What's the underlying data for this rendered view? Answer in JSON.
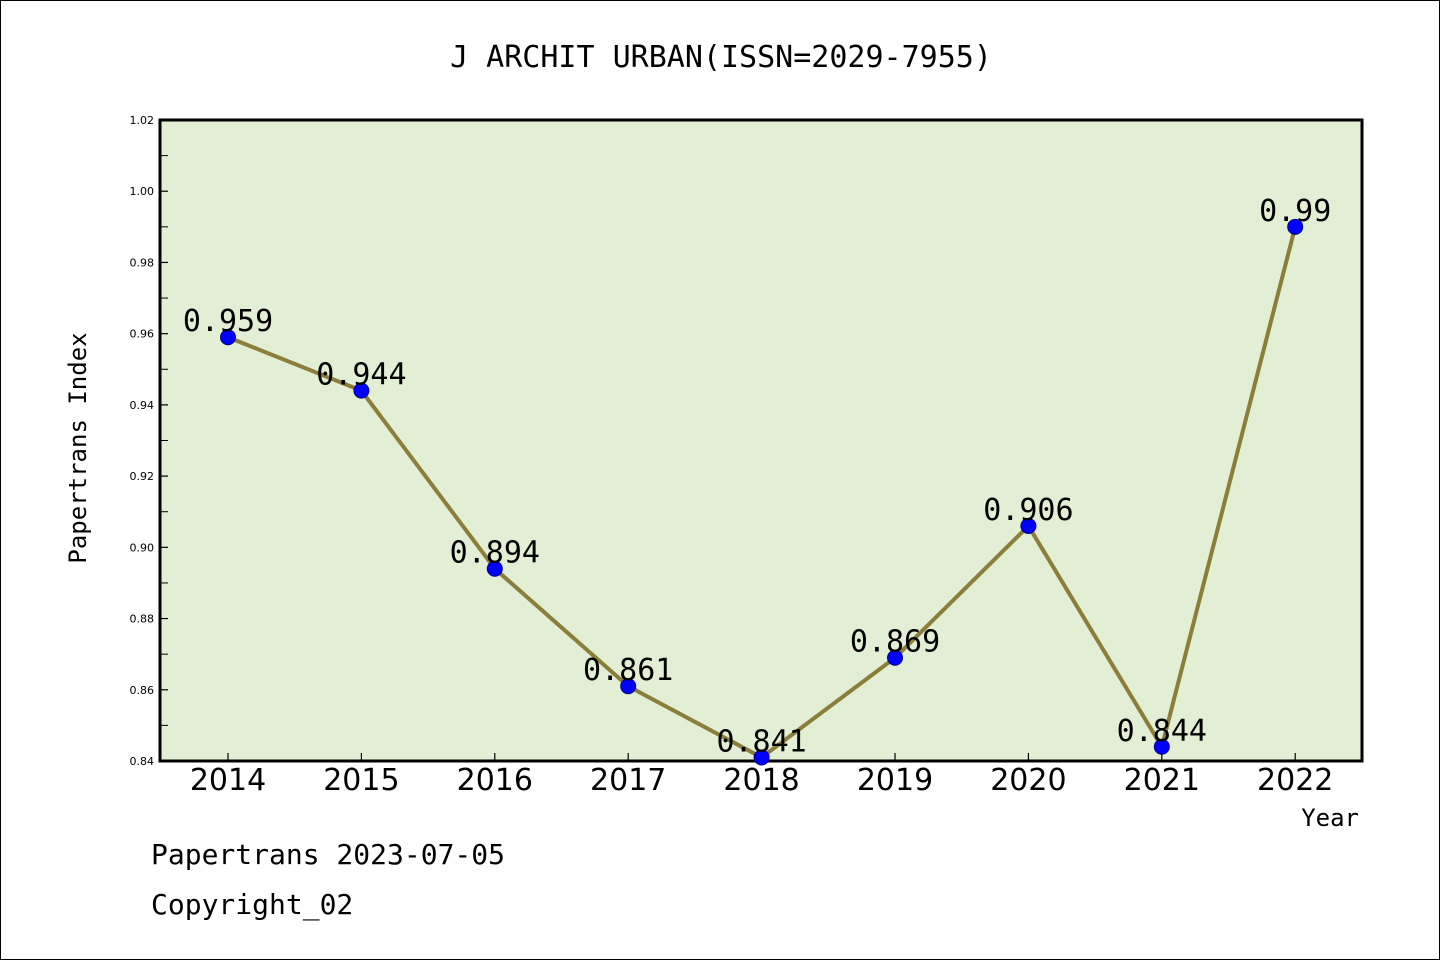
{
  "chart_data": {
    "type": "line",
    "title": "J ARCHIT URBAN(ISSN=2029-7955)",
    "xlabel": "Year",
    "ylabel": "Papertrans Index",
    "x": [
      "2014",
      "2015",
      "2016",
      "2017",
      "2018",
      "2019",
      "2020",
      "2021",
      "2022"
    ],
    "values": [
      0.959,
      0.944,
      0.894,
      0.861,
      0.841,
      0.869,
      0.906,
      0.844,
      0.99
    ],
    "data_labels": [
      "0.959",
      "0.944",
      "0.894",
      "0.861",
      "0.841",
      "0.869",
      "0.906",
      "0.844",
      "0.99"
    ],
    "ylim": [
      0.84,
      1.02
    ],
    "yticks": [
      "0.84",
      "0.86",
      "0.88",
      "0.90",
      "0.92",
      "0.94",
      "0.96",
      "0.98",
      "1.00",
      "1.02"
    ],
    "grid": false,
    "colors": {
      "plot_background": "#e2efd4",
      "line": "#8b7d3a",
      "marker": "#0000ff"
    }
  },
  "footer": {
    "line1": "Papertrans 2023-07-05",
    "line2": "Copyright_02"
  }
}
